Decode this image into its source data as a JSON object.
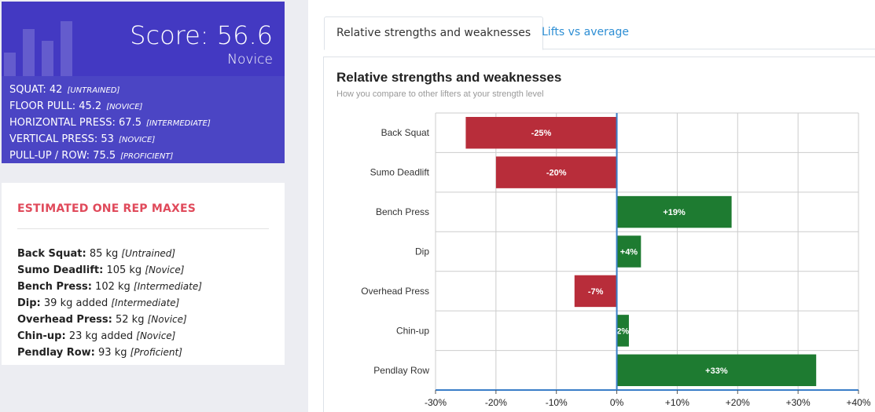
{
  "score": {
    "label": "Score: 56.6",
    "level": "Novice",
    "categories": [
      {
        "name": "SQUAT: 42",
        "level": "[UNTRAINED]"
      },
      {
        "name": "FLOOR PULL: 45.2",
        "level": "[NOVICE]"
      },
      {
        "name": "HORIZONTAL PRESS: 67.5",
        "level": "[INTERMEDIATE]"
      },
      {
        "name": "VERTICAL PRESS: 53",
        "level": "[NOVICE]"
      },
      {
        "name": "PULL-UP / ROW: 75.5",
        "level": "[PROFICIENT]"
      }
    ]
  },
  "one_rep_maxes": {
    "title": "ESTIMATED ONE REP MAXES",
    "items": [
      {
        "lift": "Back Squat:",
        "value": "85 kg",
        "level": "[Untrained]"
      },
      {
        "lift": "Sumo Deadlift:",
        "value": "105 kg",
        "level": "[Novice]"
      },
      {
        "lift": "Bench Press:",
        "value": "102 kg",
        "level": "[Intermediate]"
      },
      {
        "lift": "Dip:",
        "value": "39 kg added",
        "level": "[Intermediate]"
      },
      {
        "lift": "Overhead Press:",
        "value": "52 kg",
        "level": "[Novice]"
      },
      {
        "lift": "Chin-up:",
        "value": "23 kg added",
        "level": "[Novice]"
      },
      {
        "lift": "Pendlay Row:",
        "value": "93 kg",
        "level": "[Proficient]"
      }
    ]
  },
  "tabs": [
    {
      "label": "Relative strengths and weaknesses",
      "active": true
    },
    {
      "label": "Lifts vs average",
      "active": false
    }
  ],
  "chart_data": {
    "type": "bar",
    "orientation": "horizontal",
    "title": "Relative strengths and weaknesses",
    "subtitle": "How you compare to other lifters at your strength level",
    "categories": [
      "Back Squat",
      "Sumo Deadlift",
      "Bench Press",
      "Dip",
      "Overhead Press",
      "Chin-up",
      "Pendlay Row"
    ],
    "values": [
      -25,
      -20,
      19,
      4,
      -7,
      2,
      33
    ],
    "labels": [
      "-25%",
      "-20%",
      "+19%",
      "+4%",
      "-7%",
      "2%",
      "+33%"
    ],
    "xlim": [
      -30,
      40
    ],
    "xticks": [
      -30,
      -20,
      -10,
      0,
      10,
      20,
      30,
      40
    ],
    "xtick_labels": [
      "-30%",
      "-20%",
      "-10%",
      "0%",
      "+10%",
      "+20%",
      "+30%",
      "+40%"
    ],
    "grid": true,
    "colors": {
      "negative": "#b82d3a",
      "positive": "#1e7b31",
      "axis": "#3a7ec8",
      "grid": "#cccccc"
    }
  }
}
